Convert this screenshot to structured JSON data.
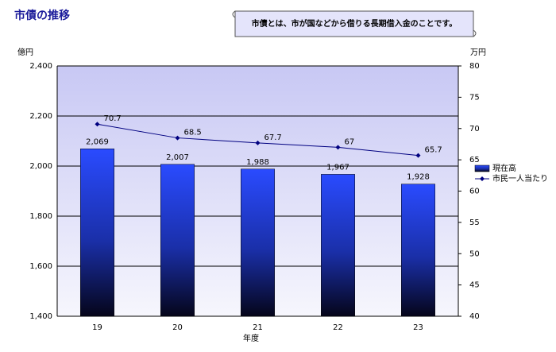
{
  "chart_data": {
    "type": "combo",
    "title": "市債の推移",
    "annotation": "市債とは、市が国などから借りる長期借入金のことです。",
    "y_label": "億円",
    "y2_label": "万円",
    "x_label": "年度",
    "categories": [
      "19",
      "20",
      "21",
      "22",
      "23"
    ],
    "series": [
      {
        "name": "現在高",
        "type": "bar",
        "color": "#1f3cff",
        "values": [
          2069,
          2007,
          1988,
          1967,
          1928
        ],
        "value_labels": [
          "2,069",
          "2,007",
          "1,988",
          "1,967",
          "1,928"
        ]
      },
      {
        "name": "市民一人当たり",
        "type": "line",
        "axis": "y2",
        "color": "#000080",
        "values": [
          70.7,
          68.5,
          67.7,
          67,
          65.7
        ]
      }
    ],
    "ylim": [
      1400,
      2400
    ],
    "yticks": [
      {
        "value": 1400,
        "label": "1,400"
      },
      {
        "value": 1600,
        "label": "1,600"
      },
      {
        "value": 1800,
        "label": "1,800"
      },
      {
        "value": 2000,
        "label": "2,000"
      },
      {
        "value": 2200,
        "label": "2,200"
      },
      {
        "value": 2400,
        "label": "2,400"
      }
    ],
    "y2lim": [
      40,
      80
    ],
    "y2ticks": [
      40,
      45,
      50,
      55,
      60,
      65,
      70,
      75,
      80
    ],
    "grid": true,
    "legend": "right"
  }
}
